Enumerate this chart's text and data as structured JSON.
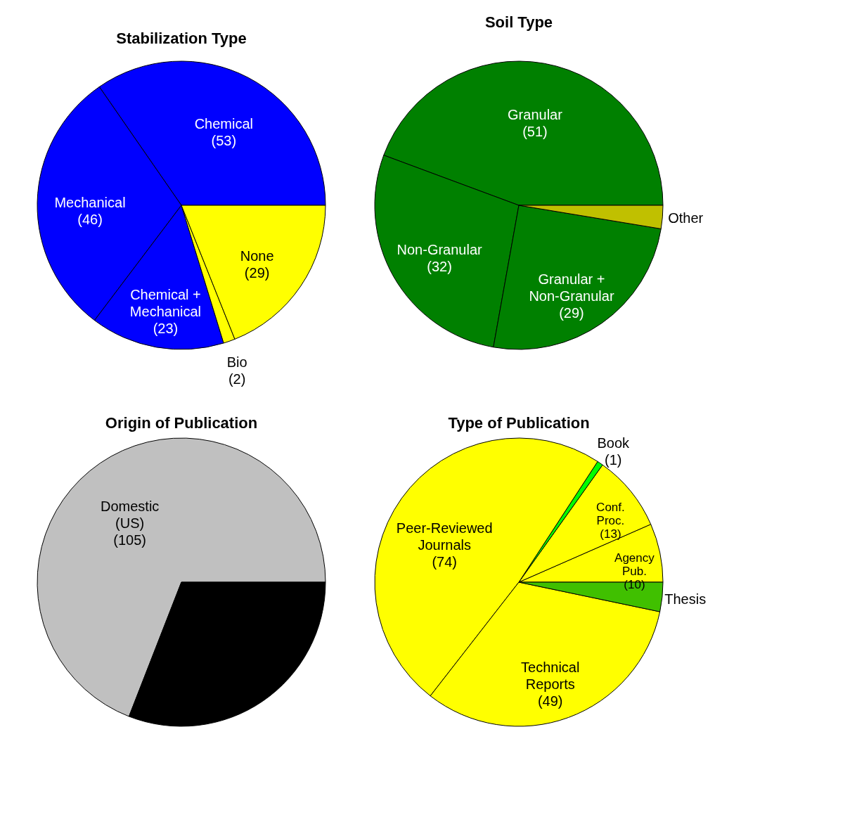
{
  "chart_data": [
    {
      "type": "pie",
      "title": "Stabilization Type",
      "categories": [
        "Chemical",
        "Mechanical",
        "Chemical + Mechanical",
        "Bio",
        "None"
      ],
      "values": [
        53,
        46,
        23,
        2,
        29
      ],
      "value_labels": [
        "(53)",
        "(46)",
        "(23)",
        "(2)",
        "(29)"
      ],
      "colors": [
        "#0000ff",
        "#0000ff",
        "#0000ff",
        "#ffff00",
        "#ffff00"
      ]
    },
    {
      "type": "pie",
      "title": "Soil Type",
      "categories": [
        "Granular",
        "Non-Granular",
        "Granular + Non-Granular",
        "Other"
      ],
      "values": [
        51,
        32,
        29,
        3
      ],
      "value_labels": [
        "(51)",
        "(32)",
        "(29)",
        null
      ],
      "colors": [
        "#008000",
        "#008000",
        "#008000",
        "#c0c000"
      ]
    },
    {
      "type": "pie",
      "title": "Origin of Publication",
      "categories": [
        "Domestic (US)",
        null
      ],
      "values": [
        105,
        47
      ],
      "value_labels": [
        "(105)",
        null
      ],
      "colors": [
        "#c0c0c0",
        "#000000"
      ]
    },
    {
      "type": "pie",
      "title": "Type of Publication",
      "categories": [
        "Agency Pub.",
        "Conf. Proc.",
        "Book",
        "Peer-Reviewed Journals",
        "Technical Reports",
        "Thesis"
      ],
      "values": [
        10,
        13,
        1,
        74,
        49,
        5
      ],
      "value_labels": [
        "(10)",
        "(13)",
        "(1)",
        "(74)",
        "(49)",
        null
      ],
      "colors": [
        "#ffff00",
        "#ffff00",
        "#00ff00",
        "#ffff00",
        "#ffff00",
        "#40c000"
      ]
    }
  ]
}
